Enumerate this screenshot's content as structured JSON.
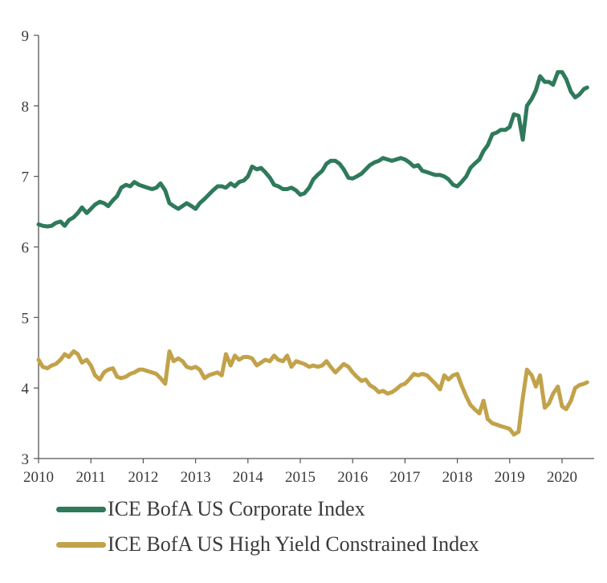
{
  "chart_data": {
    "type": "line",
    "x_ticks": [
      "2010",
      "2011",
      "2012",
      "2013",
      "2014",
      "2015",
      "2016",
      "2017",
      "2018",
      "2019",
      "2020"
    ],
    "y_ticks": [
      "3",
      "4",
      "5",
      "6",
      "7",
      "8",
      "9"
    ],
    "xlim": [
      2010,
      2020.5
    ],
    "ylim": [
      3,
      9
    ],
    "grid": false,
    "legend_position": "bottom",
    "series": [
      {
        "name": "ICE BofA US Corporate Index",
        "color": "#2e7a5a",
        "points": [
          [
            2010.0,
            6.32
          ],
          [
            2010.08,
            6.3
          ],
          [
            2010.17,
            6.29
          ],
          [
            2010.25,
            6.3
          ],
          [
            2010.33,
            6.34
          ],
          [
            2010.42,
            6.36
          ],
          [
            2010.5,
            6.3
          ],
          [
            2010.58,
            6.38
          ],
          [
            2010.67,
            6.42
          ],
          [
            2010.75,
            6.48
          ],
          [
            2010.83,
            6.56
          ],
          [
            2010.92,
            6.48
          ],
          [
            2011.0,
            6.54
          ],
          [
            2011.08,
            6.6
          ],
          [
            2011.17,
            6.64
          ],
          [
            2011.25,
            6.62
          ],
          [
            2011.33,
            6.58
          ],
          [
            2011.42,
            6.66
          ],
          [
            2011.5,
            6.72
          ],
          [
            2011.58,
            6.84
          ],
          [
            2011.67,
            6.88
          ],
          [
            2011.75,
            6.86
          ],
          [
            2011.83,
            6.92
          ],
          [
            2011.92,
            6.88
          ],
          [
            2012.0,
            6.86
          ],
          [
            2012.08,
            6.84
          ],
          [
            2012.17,
            6.82
          ],
          [
            2012.25,
            6.84
          ],
          [
            2012.33,
            6.9
          ],
          [
            2012.42,
            6.8
          ],
          [
            2012.5,
            6.62
          ],
          [
            2012.58,
            6.58
          ],
          [
            2012.67,
            6.54
          ],
          [
            2012.75,
            6.58
          ],
          [
            2012.83,
            6.62
          ],
          [
            2012.92,
            6.58
          ],
          [
            2013.0,
            6.54
          ],
          [
            2013.08,
            6.62
          ],
          [
            2013.17,
            6.68
          ],
          [
            2013.25,
            6.74
          ],
          [
            2013.33,
            6.8
          ],
          [
            2013.42,
            6.86
          ],
          [
            2013.5,
            6.86
          ],
          [
            2013.58,
            6.84
          ],
          [
            2013.67,
            6.9
          ],
          [
            2013.75,
            6.86
          ],
          [
            2013.83,
            6.92
          ],
          [
            2013.92,
            6.94
          ],
          [
            2014.0,
            7.0
          ],
          [
            2014.08,
            7.14
          ],
          [
            2014.17,
            7.1
          ],
          [
            2014.25,
            7.12
          ],
          [
            2014.33,
            7.06
          ],
          [
            2014.42,
            6.98
          ],
          [
            2014.5,
            6.88
          ],
          [
            2014.58,
            6.86
          ],
          [
            2014.67,
            6.82
          ],
          [
            2014.75,
            6.82
          ],
          [
            2014.83,
            6.84
          ],
          [
            2014.92,
            6.8
          ],
          [
            2015.0,
            6.74
          ],
          [
            2015.08,
            6.76
          ],
          [
            2015.17,
            6.84
          ],
          [
            2015.25,
            6.96
          ],
          [
            2015.33,
            7.02
          ],
          [
            2015.42,
            7.08
          ],
          [
            2015.5,
            7.18
          ],
          [
            2015.58,
            7.22
          ],
          [
            2015.67,
            7.22
          ],
          [
            2015.75,
            7.18
          ],
          [
            2015.83,
            7.1
          ],
          [
            2015.92,
            6.98
          ],
          [
            2016.0,
            6.97
          ],
          [
            2016.08,
            7.0
          ],
          [
            2016.17,
            7.04
          ],
          [
            2016.25,
            7.1
          ],
          [
            2016.33,
            7.16
          ],
          [
            2016.42,
            7.2
          ],
          [
            2016.5,
            7.22
          ],
          [
            2016.58,
            7.26
          ],
          [
            2016.67,
            7.24
          ],
          [
            2016.75,
            7.22
          ],
          [
            2016.83,
            7.24
          ],
          [
            2016.92,
            7.26
          ],
          [
            2017.0,
            7.24
          ],
          [
            2017.08,
            7.2
          ],
          [
            2017.17,
            7.14
          ],
          [
            2017.25,
            7.16
          ],
          [
            2017.33,
            7.08
          ],
          [
            2017.42,
            7.06
          ],
          [
            2017.5,
            7.04
          ],
          [
            2017.58,
            7.02
          ],
          [
            2017.67,
            7.02
          ],
          [
            2017.75,
            7.0
          ],
          [
            2017.83,
            6.96
          ],
          [
            2017.92,
            6.88
          ],
          [
            2018.0,
            6.86
          ],
          [
            2018.08,
            6.92
          ],
          [
            2018.17,
            7.0
          ],
          [
            2018.25,
            7.12
          ],
          [
            2018.33,
            7.18
          ],
          [
            2018.42,
            7.24
          ],
          [
            2018.5,
            7.36
          ],
          [
            2018.58,
            7.44
          ],
          [
            2018.67,
            7.6
          ],
          [
            2018.75,
            7.62
          ],
          [
            2018.83,
            7.66
          ],
          [
            2018.92,
            7.66
          ],
          [
            2019.0,
            7.7
          ],
          [
            2019.08,
            7.88
          ],
          [
            2019.17,
            7.86
          ],
          [
            2019.25,
            7.52
          ],
          [
            2019.33,
            8.0
          ],
          [
            2019.42,
            8.1
          ],
          [
            2019.5,
            8.22
          ],
          [
            2019.58,
            8.42
          ],
          [
            2019.67,
            8.34
          ],
          [
            2019.75,
            8.34
          ],
          [
            2019.83,
            8.3
          ],
          [
            2019.92,
            8.48
          ],
          [
            2020.0,
            8.48
          ],
          [
            2020.08,
            8.38
          ],
          [
            2020.17,
            8.2
          ],
          [
            2020.25,
            8.12
          ],
          [
            2020.33,
            8.16
          ],
          [
            2020.42,
            8.24
          ],
          [
            2020.48,
            8.26
          ]
        ]
      },
      {
        "name": "ICE BofA US High Yield Constrained Index",
        "color": "#c2a24a",
        "points": [
          [
            2010.0,
            4.4
          ],
          [
            2010.08,
            4.3
          ],
          [
            2010.17,
            4.28
          ],
          [
            2010.25,
            4.32
          ],
          [
            2010.33,
            4.34
          ],
          [
            2010.42,
            4.4
          ],
          [
            2010.5,
            4.48
          ],
          [
            2010.58,
            4.44
          ],
          [
            2010.67,
            4.52
          ],
          [
            2010.75,
            4.48
          ],
          [
            2010.83,
            4.36
          ],
          [
            2010.92,
            4.4
          ],
          [
            2011.0,
            4.32
          ],
          [
            2011.08,
            4.18
          ],
          [
            2011.17,
            4.12
          ],
          [
            2011.25,
            4.22
          ],
          [
            2011.33,
            4.26
          ],
          [
            2011.42,
            4.28
          ],
          [
            2011.5,
            4.16
          ],
          [
            2011.58,
            4.14
          ],
          [
            2011.67,
            4.16
          ],
          [
            2011.75,
            4.2
          ],
          [
            2011.83,
            4.22
          ],
          [
            2011.92,
            4.26
          ],
          [
            2012.0,
            4.26
          ],
          [
            2012.08,
            4.24
          ],
          [
            2012.17,
            4.22
          ],
          [
            2012.25,
            4.2
          ],
          [
            2012.33,
            4.14
          ],
          [
            2012.42,
            4.06
          ],
          [
            2012.5,
            4.52
          ],
          [
            2012.58,
            4.38
          ],
          [
            2012.67,
            4.42
          ],
          [
            2012.75,
            4.38
          ],
          [
            2012.83,
            4.3
          ],
          [
            2012.92,
            4.28
          ],
          [
            2013.0,
            4.3
          ],
          [
            2013.08,
            4.26
          ],
          [
            2013.17,
            4.14
          ],
          [
            2013.25,
            4.18
          ],
          [
            2013.33,
            4.2
          ],
          [
            2013.42,
            4.22
          ],
          [
            2013.5,
            4.18
          ],
          [
            2013.58,
            4.48
          ],
          [
            2013.67,
            4.32
          ],
          [
            2013.75,
            4.46
          ],
          [
            2013.83,
            4.4
          ],
          [
            2013.92,
            4.44
          ],
          [
            2014.0,
            4.44
          ],
          [
            2014.08,
            4.42
          ],
          [
            2014.17,
            4.32
          ],
          [
            2014.25,
            4.36
          ],
          [
            2014.33,
            4.4
          ],
          [
            2014.42,
            4.38
          ],
          [
            2014.5,
            4.46
          ],
          [
            2014.58,
            4.4
          ],
          [
            2014.67,
            4.38
          ],
          [
            2014.75,
            4.46
          ],
          [
            2014.83,
            4.3
          ],
          [
            2014.92,
            4.38
          ],
          [
            2015.0,
            4.36
          ],
          [
            2015.08,
            4.34
          ],
          [
            2015.17,
            4.3
          ],
          [
            2015.25,
            4.32
          ],
          [
            2015.33,
            4.3
          ],
          [
            2015.42,
            4.32
          ],
          [
            2015.5,
            4.38
          ],
          [
            2015.58,
            4.3
          ],
          [
            2015.67,
            4.22
          ],
          [
            2015.75,
            4.28
          ],
          [
            2015.83,
            4.34
          ],
          [
            2015.92,
            4.3
          ],
          [
            2016.0,
            4.22
          ],
          [
            2016.08,
            4.16
          ],
          [
            2016.17,
            4.1
          ],
          [
            2016.25,
            4.12
          ],
          [
            2016.33,
            4.04
          ],
          [
            2016.42,
            4.0
          ],
          [
            2016.5,
            3.94
          ],
          [
            2016.58,
            3.96
          ],
          [
            2016.67,
            3.92
          ],
          [
            2016.75,
            3.94
          ],
          [
            2016.83,
            3.98
          ],
          [
            2016.92,
            4.04
          ],
          [
            2017.0,
            4.06
          ],
          [
            2017.08,
            4.12
          ],
          [
            2017.17,
            4.2
          ],
          [
            2017.25,
            4.18
          ],
          [
            2017.33,
            4.2
          ],
          [
            2017.42,
            4.18
          ],
          [
            2017.5,
            4.12
          ],
          [
            2017.58,
            4.06
          ],
          [
            2017.67,
            3.98
          ],
          [
            2017.75,
            4.18
          ],
          [
            2017.83,
            4.12
          ],
          [
            2017.92,
            4.18
          ],
          [
            2018.0,
            4.2
          ],
          [
            2018.08,
            4.04
          ],
          [
            2018.17,
            3.88
          ],
          [
            2018.25,
            3.76
          ],
          [
            2018.33,
            3.7
          ],
          [
            2018.42,
            3.64
          ],
          [
            2018.5,
            3.82
          ],
          [
            2018.58,
            3.56
          ],
          [
            2018.67,
            3.5
          ],
          [
            2018.75,
            3.48
          ],
          [
            2018.83,
            3.46
          ],
          [
            2018.92,
            3.44
          ],
          [
            2019.0,
            3.42
          ],
          [
            2019.08,
            3.34
          ],
          [
            2019.17,
            3.38
          ],
          [
            2019.25,
            3.86
          ],
          [
            2019.33,
            4.26
          ],
          [
            2019.42,
            4.18
          ],
          [
            2019.5,
            4.02
          ],
          [
            2019.58,
            4.18
          ],
          [
            2019.67,
            3.72
          ],
          [
            2019.75,
            3.78
          ],
          [
            2019.83,
            3.92
          ],
          [
            2019.92,
            4.02
          ],
          [
            2020.0,
            3.74
          ],
          [
            2020.08,
            3.7
          ],
          [
            2020.17,
            3.82
          ],
          [
            2020.25,
            4.0
          ],
          [
            2020.33,
            4.04
          ],
          [
            2020.42,
            4.06
          ],
          [
            2020.48,
            4.08
          ]
        ]
      }
    ]
  }
}
